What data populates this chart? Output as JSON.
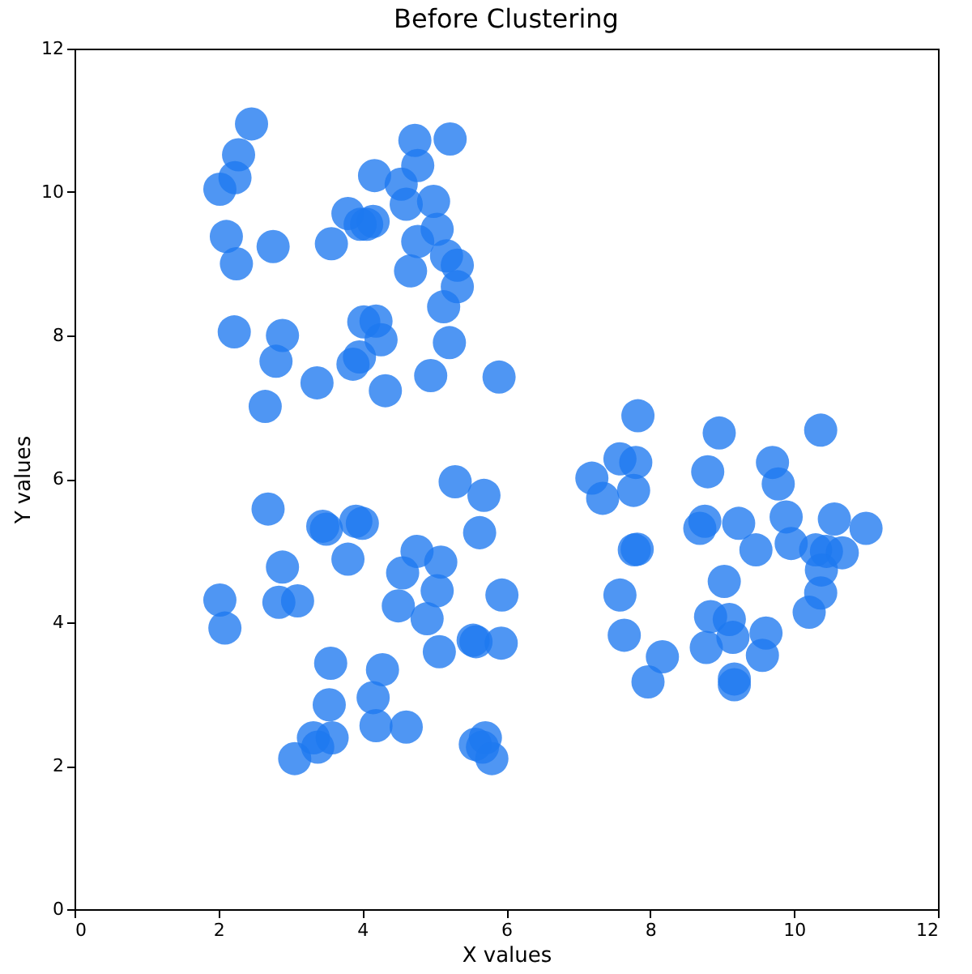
{
  "chart_data": {
    "type": "scatter",
    "title": "Before Clustering",
    "xlabel": "X values",
    "ylabel": "Y values",
    "xlim": [
      0,
      12
    ],
    "ylim": [
      0,
      12
    ],
    "xticks": [
      0,
      2,
      4,
      6,
      8,
      10,
      12
    ],
    "yticks": [
      0,
      2,
      4,
      6,
      8,
      10,
      12
    ],
    "grid": false,
    "legend": false,
    "marker": "circle",
    "series": [
      {
        "color": "#1e78f0",
        "x": [
          2.46,
          2.28,
          2.23,
          2.02,
          2.11,
          2.25,
          2.22,
          2.76,
          2.89,
          2.8,
          2.65,
          3.37,
          3.57,
          3.8,
          3.97,
          4.15,
          4.06,
          4.17,
          4.54,
          4.73,
          4.77,
          5.22,
          4.61,
          4.99,
          4.77,
          5.04,
          4.67,
          5.17,
          5.32,
          5.32,
          5.13,
          5.21,
          4.95,
          5.9,
          4.02,
          4.19,
          4.26,
          3.96,
          3.87,
          4.32,
          2.69,
          2.89,
          2.84,
          3.1,
          2.02,
          2.09,
          3.45,
          3.5,
          3.91,
          4.0,
          3.8,
          3.56,
          3.54,
          3.58,
          3.32,
          3.38,
          3.06,
          4.15,
          4.28,
          4.19,
          4.61,
          5.29,
          5.69,
          5.63,
          4.76,
          5.09,
          4.56,
          5.04,
          4.5,
          4.9,
          5.94,
          5.07,
          5.54,
          5.58,
          5.93,
          5.57,
          5.71,
          5.67,
          5.8,
          7.83,
          7.58,
          7.8,
          7.19,
          7.34,
          7.77,
          7.78,
          7.82,
          7.58,
          7.64,
          8.17,
          7.97,
          8.96,
          8.8,
          8.76,
          8.69,
          9.23,
          9.47,
          9.03,
          8.84,
          9.1,
          9.15,
          8.78,
          9.17,
          9.17,
          9.61,
          9.56,
          9.7,
          9.78,
          9.89,
          9.96,
          10.37,
          10.56,
          11.0,
          10.3,
          10.45,
          10.67,
          10.38,
          10.37,
          10.21
        ],
        "values": [
          10.95,
          10.52,
          10.2,
          10.04,
          9.38,
          9.0,
          8.05,
          9.24,
          8.0,
          7.64,
          7.01,
          7.34,
          9.28,
          9.7,
          9.55,
          9.59,
          9.55,
          10.23,
          10.11,
          10.72,
          10.37,
          10.74,
          9.83,
          9.87,
          9.31,
          9.48,
          8.9,
          9.11,
          8.98,
          8.68,
          8.4,
          7.9,
          7.44,
          7.42,
          8.19,
          8.2,
          7.94,
          7.7,
          7.6,
          7.23,
          5.58,
          4.77,
          4.28,
          4.3,
          4.31,
          3.92,
          5.34,
          5.3,
          5.41,
          5.38,
          4.88,
          3.43,
          2.85,
          2.39,
          2.39,
          2.26,
          2.1,
          2.95,
          3.34,
          2.56,
          2.54,
          5.96,
          5.77,
          5.25,
          4.99,
          4.84,
          4.69,
          4.44,
          4.23,
          4.05,
          4.38,
          3.59,
          3.75,
          3.73,
          3.71,
          2.3,
          2.39,
          2.26,
          2.1,
          6.88,
          6.28,
          6.23,
          6.01,
          5.73,
          5.84,
          5.01,
          5.02,
          4.38,
          3.82,
          3.52,
          3.17,
          6.64,
          6.1,
          5.41,
          5.31,
          5.38,
          5.01,
          4.57,
          4.08,
          4.04,
          3.79,
          3.65,
          3.21,
          3.13,
          3.85,
          3.54,
          6.23,
          5.93,
          5.47,
          5.1,
          6.68,
          5.44,
          5.31,
          5.01,
          4.99,
          4.97,
          4.73,
          4.41,
          4.14
        ]
      }
    ]
  }
}
